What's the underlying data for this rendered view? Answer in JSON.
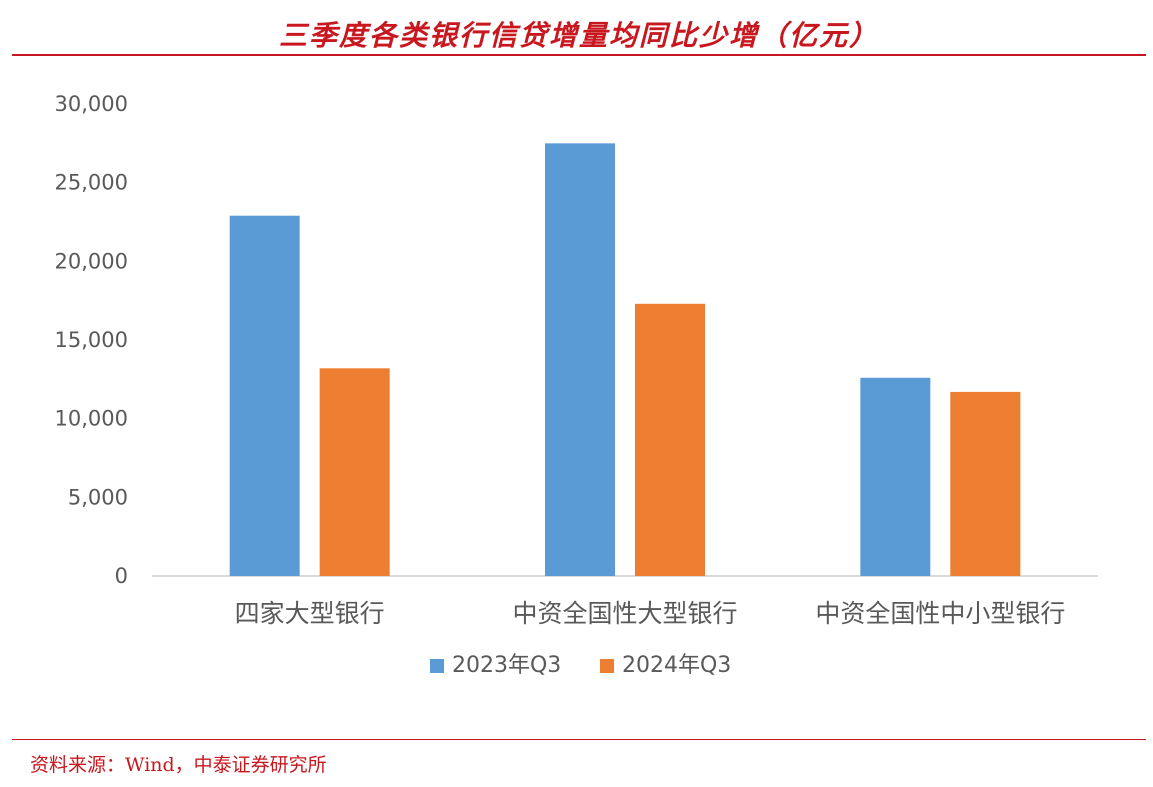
{
  "header": {
    "title": "三季度各类银行信贷增量均同比少增（亿元）"
  },
  "chart_data": {
    "type": "bar",
    "categories": [
      "四家大型银行",
      "中资全国性大型银行",
      "中资全国性中小型银行"
    ],
    "series": [
      {
        "name": "2023年Q3",
        "values": [
          22900,
          27500,
          12600
        ],
        "color": "#5b9bd5"
      },
      {
        "name": "2024年Q3",
        "values": [
          13200,
          17300,
          11700
        ],
        "color": "#ed7d31"
      }
    ],
    "ylim": [
      0,
      30000
    ],
    "yticks": [
      0,
      5000,
      10000,
      15000,
      20000,
      25000,
      30000
    ],
    "ytick_labels": [
      "0",
      "5,000",
      "10,000",
      "15,000",
      "20,000",
      "25,000",
      "30,000"
    ],
    "legend_position": "bottom",
    "grid": false
  },
  "footer": {
    "source": "资料来源：Wind，中泰证券研究所"
  }
}
